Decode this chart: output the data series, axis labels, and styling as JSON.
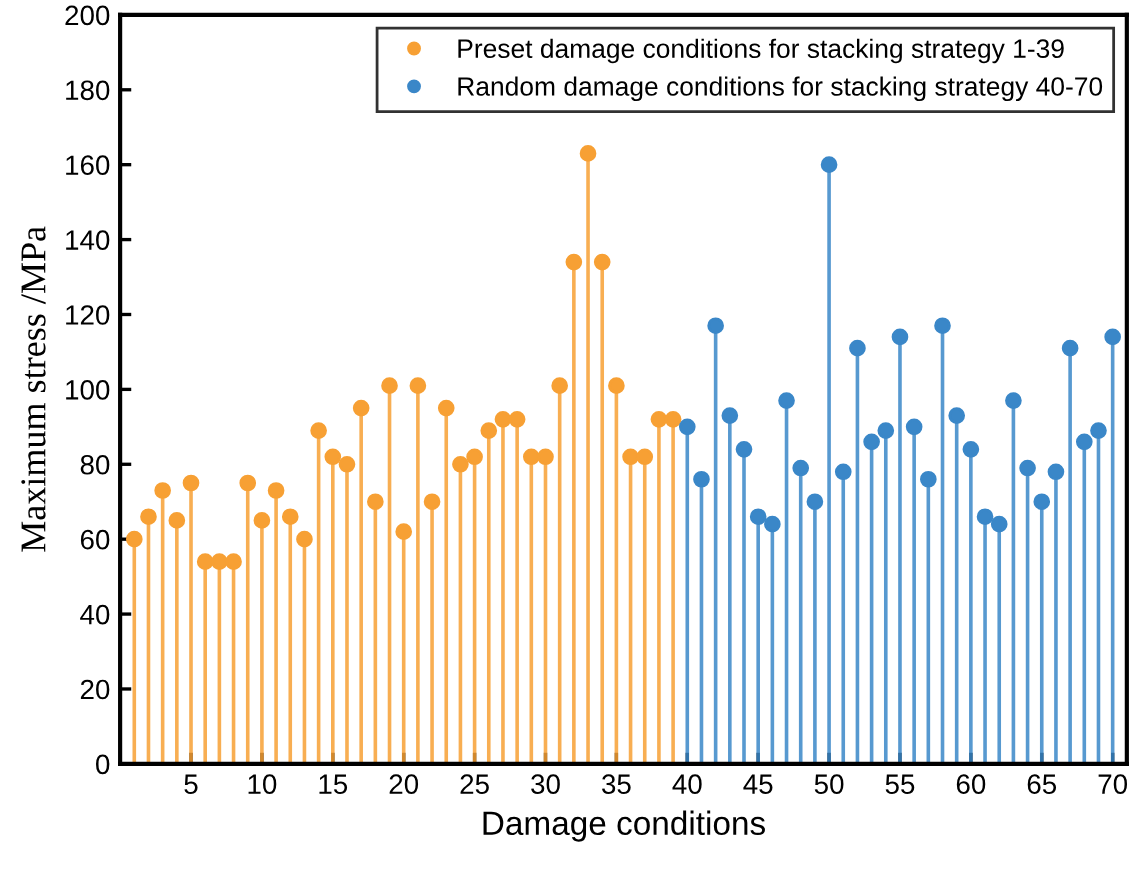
{
  "chart_data": {
    "type": "lollipop",
    "xlabel": "Damage conditions",
    "ylabel": "Maximum stress /MPa",
    "xlim": [
      0,
      71
    ],
    "xticks": [
      5,
      10,
      15,
      20,
      25,
      30,
      35,
      40,
      45,
      50,
      55,
      60,
      65,
      70
    ],
    "ylim": [
      0,
      200
    ],
    "yticks": [
      0,
      20,
      40,
      60,
      80,
      100,
      120,
      140,
      160,
      180,
      200
    ],
    "legend": "top right",
    "grid": false,
    "marker": "circle",
    "series": [
      {
        "name": "Preset damage conditions for stacking strategy 1-39",
        "color": "#f7a034",
        "x": [
          1,
          2,
          3,
          4,
          5,
          6,
          7,
          8,
          9,
          10,
          11,
          12,
          13,
          14,
          15,
          16,
          17,
          18,
          19,
          20,
          21,
          22,
          23,
          24,
          25,
          26,
          27,
          28,
          29,
          30,
          31,
          32,
          33,
          34,
          35,
          36,
          37,
          38,
          39
        ],
        "values": [
          60,
          66,
          73,
          65,
          75,
          54,
          54,
          54,
          75,
          65,
          73,
          66,
          60,
          89,
          82,
          80,
          95,
          70,
          101,
          62,
          101,
          70,
          95,
          80,
          82,
          89,
          92,
          92,
          82,
          82,
          101,
          134,
          163,
          134,
          101,
          82,
          82,
          92,
          92
        ]
      },
      {
        "name": "Random damage conditions for stacking strategy 40-70",
        "color": "#3a87c8",
        "x": [
          40,
          41,
          42,
          43,
          44,
          45,
          46,
          47,
          48,
          49,
          50,
          51,
          52,
          53,
          54,
          55,
          56,
          57,
          58,
          59,
          60,
          61,
          62,
          63,
          64,
          65,
          66,
          67,
          68,
          69,
          70
        ],
        "values": [
          90,
          76,
          117,
          93,
          84,
          66,
          64,
          97,
          79,
          70,
          160,
          78,
          111,
          86,
          89,
          114,
          90,
          76,
          117,
          93,
          84,
          66,
          64,
          97,
          79,
          70,
          78,
          111,
          86,
          89,
          114
        ]
      }
    ]
  }
}
